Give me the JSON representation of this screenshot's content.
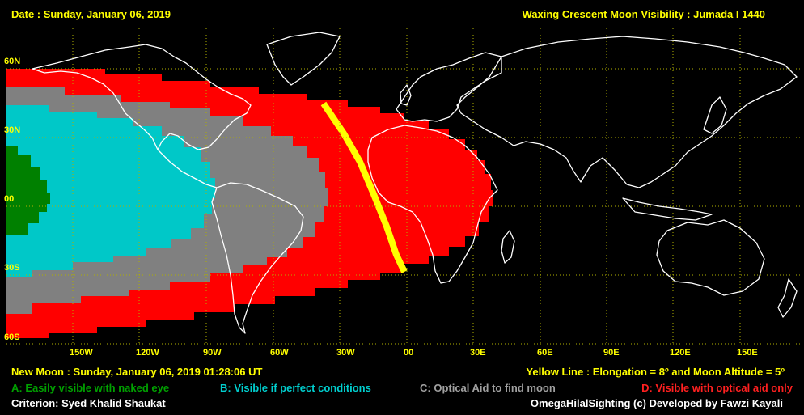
{
  "header": {
    "date": "Date : Sunday, January 06, 2019",
    "title": "Waxing Crescent Moon Visibility : Jumada I 1440"
  },
  "lat_labels": [
    "60N",
    "30N",
    "00",
    "30S",
    "60S"
  ],
  "lon_labels": [
    "150W",
    "120W",
    "90W",
    "60W",
    "30W",
    "00",
    "30E",
    "60E",
    "90E",
    "120E",
    "150E"
  ],
  "footer": {
    "new_moon": "New Moon : Sunday, January 06, 2019  01:28:06  UT",
    "yellow_line": "Yellow Line : Elongation = 8º and Moon Altitude = 5º",
    "legend_a": "A: Easily visible with naked eye",
    "legend_b": "B: Visible if perfect conditions",
    "legend_c": "C: Optical Aid to find moon",
    "legend_d": "D: Visible with optical aid only",
    "criterion": "Criterion: Syed Khalid Shaukat",
    "credit": "OmegaHilalSighting  (c)  Developed by Fawzi Kayali"
  },
  "colors": {
    "zone_a": "#008000",
    "zone_b": "#00c8c8",
    "zone_c": "#808080",
    "zone_d": "#ff0000",
    "yellow_line": "#ffff00",
    "grid": "#b0b000",
    "coast": "#ffffff"
  }
}
